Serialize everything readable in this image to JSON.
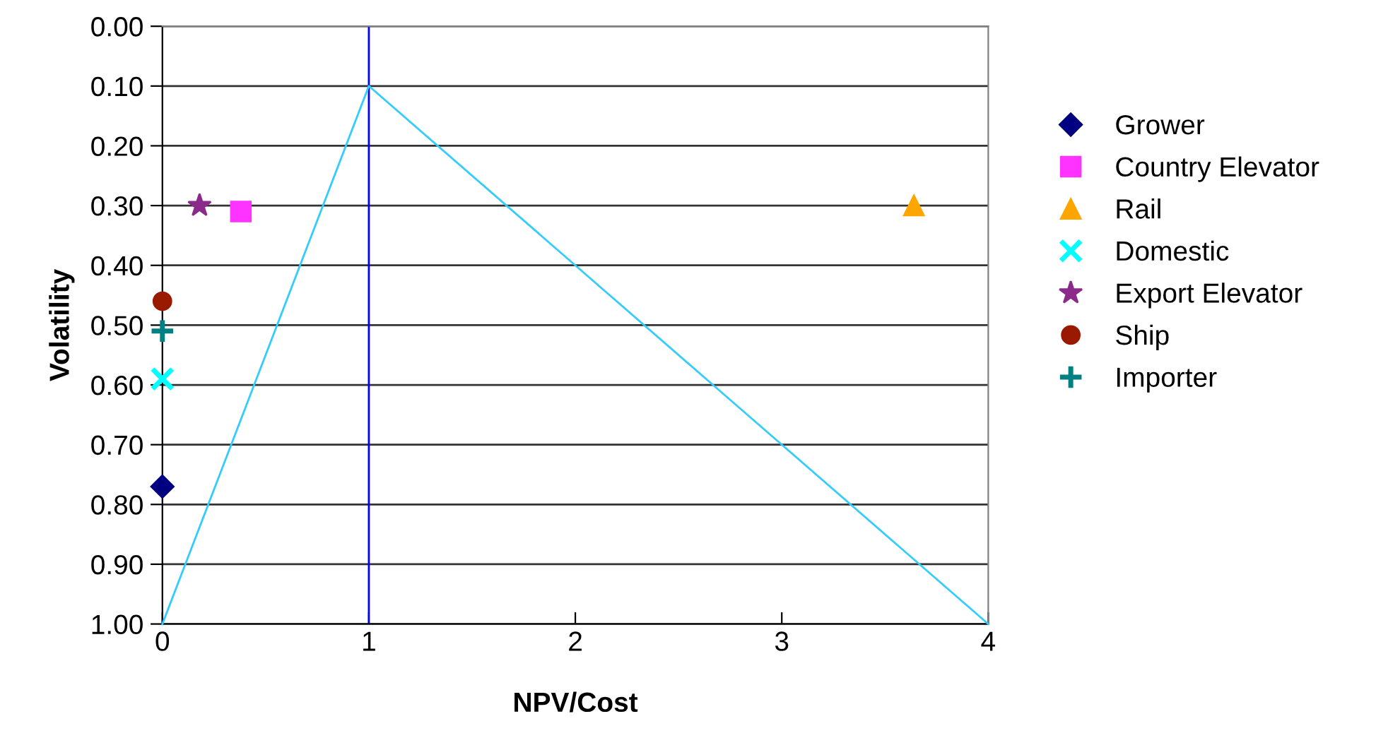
{
  "chart_data": {
    "type": "scatter",
    "xlabel": "NPV/Cost",
    "ylabel": "Volatility",
    "xlim": [
      0,
      4
    ],
    "xticks": [
      0,
      1,
      2,
      3,
      4
    ],
    "ylim": [
      1.0,
      0.0
    ],
    "yticks": [
      {
        "value": 0.0,
        "label": "0.00"
      },
      {
        "value": 0.1,
        "label": "0.10"
      },
      {
        "value": 0.2,
        "label": "0.20"
      },
      {
        "value": 0.3,
        "label": "0.30"
      },
      {
        "value": 0.4,
        "label": "0.40"
      },
      {
        "value": 0.5,
        "label": "0.50"
      },
      {
        "value": 0.6,
        "label": "0.60"
      },
      {
        "value": 0.7,
        "label": "0.70"
      },
      {
        "value": 0.8,
        "label": "0.80"
      },
      {
        "value": 0.9,
        "label": "0.90"
      },
      {
        "value": 1.0,
        "label": "1.00"
      }
    ],
    "grid": "y",
    "legend": "right",
    "ref_lines": [
      {
        "axis": "x",
        "value": 1,
        "color": "#0000ff"
      }
    ],
    "series": [
      {
        "name": "Grower",
        "color": "#000080",
        "marker": "diamond",
        "x": [
          0
        ],
        "values": [
          0.77
        ]
      },
      {
        "name": "Country Elevator",
        "color": "#ff33ff",
        "marker": "square",
        "x": [
          0.38
        ],
        "values": [
          0.31
        ]
      },
      {
        "name": "Rail",
        "color": "#ffa500",
        "marker": "triangle",
        "x": [
          3.64
        ],
        "values": [
          0.3
        ]
      },
      {
        "name": "Domestic",
        "color": "#00ffff",
        "marker": "cross",
        "x": [
          0
        ],
        "values": [
          0.59
        ]
      },
      {
        "name": "Export Elevator",
        "color": "#8b2a8b",
        "marker": "star",
        "x": [
          0.18
        ],
        "values": [
          0.3
        ]
      },
      {
        "name": "Ship",
        "color": "#991a00",
        "marker": "circle",
        "x": [
          0
        ],
        "values": [
          0.46
        ]
      },
      {
        "name": "Importer",
        "color": "#008080",
        "marker": "plus",
        "x": [
          0
        ],
        "values": [
          0.51
        ]
      },
      {
        "type": "line",
        "color": "#33ccff",
        "x": [
          0,
          1,
          4
        ],
        "values": [
          1.0,
          0.1,
          1.0
        ]
      }
    ]
  }
}
